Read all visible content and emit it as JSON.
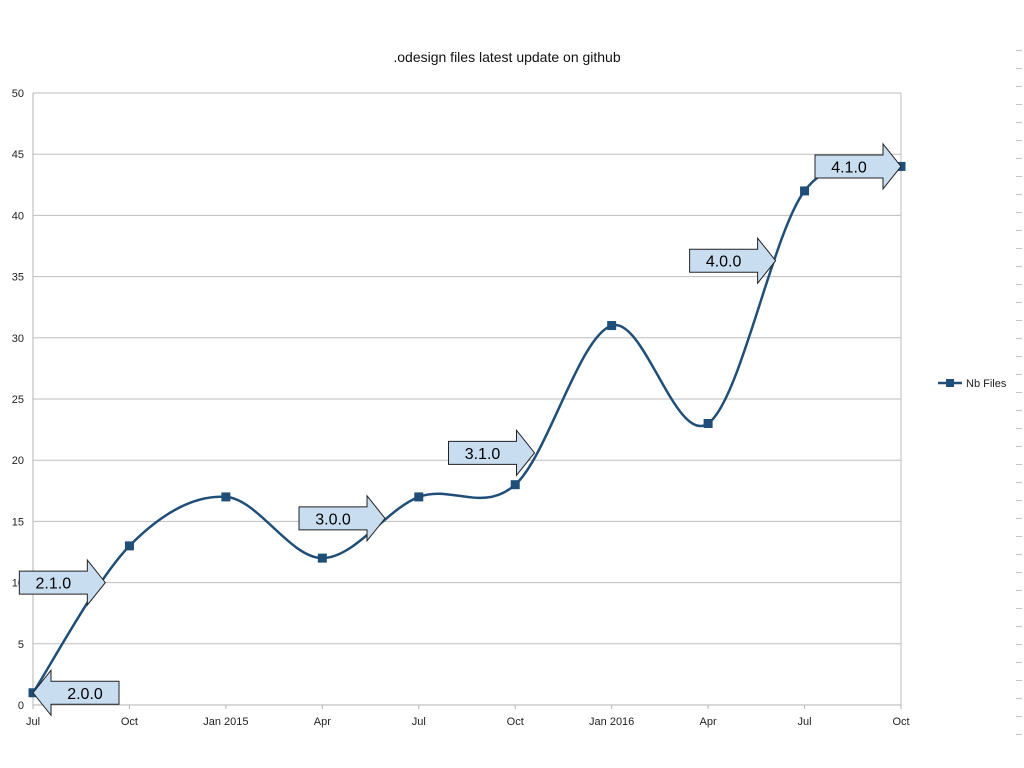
{
  "chart_data": {
    "type": "line",
    "title": ".odesign files latest update on github",
    "x_tick_labels": [
      "Jul",
      "Oct",
      "Jan 2015",
      "Apr",
      "Jul",
      "Oct",
      "Jan 2016",
      "Apr",
      "Jul",
      "Oct"
    ],
    "y_tick_labels": [
      "0",
      "5",
      "10",
      "15",
      "20",
      "25",
      "30",
      "35",
      "40",
      "45",
      "50"
    ],
    "ylim": [
      0,
      50
    ],
    "grid": true,
    "smooth": true,
    "legend_position": "right",
    "series": [
      {
        "name": "Nb Files",
        "color": "#1F4E79",
        "marker": "square",
        "values": [
          1,
          13,
          17,
          12,
          17,
          18,
          31,
          23,
          42,
          44
        ]
      }
    ],
    "annotations": [
      {
        "text": "2.0.0",
        "direction": "left",
        "points_at_index": 0
      },
      {
        "text": "2.1.0",
        "direction": "right",
        "points_at_index": 0.75
      },
      {
        "text": "3.0.0",
        "direction": "right",
        "points_at_index": 3.65
      },
      {
        "text": "3.1.0",
        "direction": "right",
        "points_at_index": 5.2
      },
      {
        "text": "4.0.0",
        "direction": "right",
        "points_at_index": 7.7
      },
      {
        "text": "4.1.0",
        "direction": "right",
        "points_at_index": 9
      }
    ],
    "annotation_fill": "#C9DDF1"
  }
}
